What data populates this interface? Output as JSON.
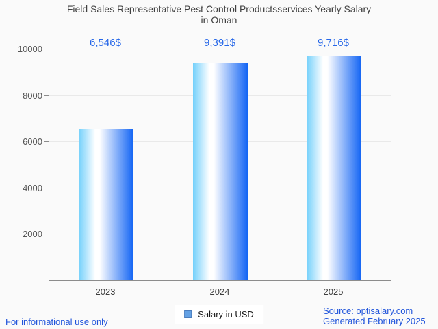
{
  "title_lines": [
    "Field Sales Representative Pest Control Productsservices Yearly Salary",
    "in Oman"
  ],
  "legend": {
    "label": "Salary in USD"
  },
  "footer": {
    "disclaimer": "For informational use only",
    "source": "Source: optisalary.com",
    "generated": "Generated February 2025"
  },
  "colors": {
    "bg": "#fafafa",
    "title_gray": "#404040",
    "axis_gray": "#8c8c8c",
    "grid_gray": "#e9e9e9",
    "tick_label_gray": "#565656",
    "xlabel_gray": "#3d3d3d",
    "accent_blue": "#2667e8",
    "link_blue": "#2155db",
    "legend_marker_fill": "#64a1e4",
    "legend_marker_border": "#4b7dbd"
  },
  "chart_data": {
    "type": "bar",
    "title": "Field Sales Representative Pest Control Productsservices Yearly Salary in Oman",
    "categories": [
      "2023",
      "2024",
      "2025"
    ],
    "values": [
      6546,
      9391,
      9716
    ],
    "value_labels": [
      "6,546$",
      "9,391$",
      "9,716$"
    ],
    "series_name": "Salary in USD",
    "xlabel": "",
    "ylabel": "",
    "ylim": [
      0,
      10000
    ],
    "yticks": [
      2000,
      4000,
      6000,
      8000,
      10000
    ],
    "grid": true,
    "legend_position": "bottom-center",
    "bar_gradient": [
      "#73d0fb",
      "#ffffff",
      "#1264f4"
    ]
  }
}
